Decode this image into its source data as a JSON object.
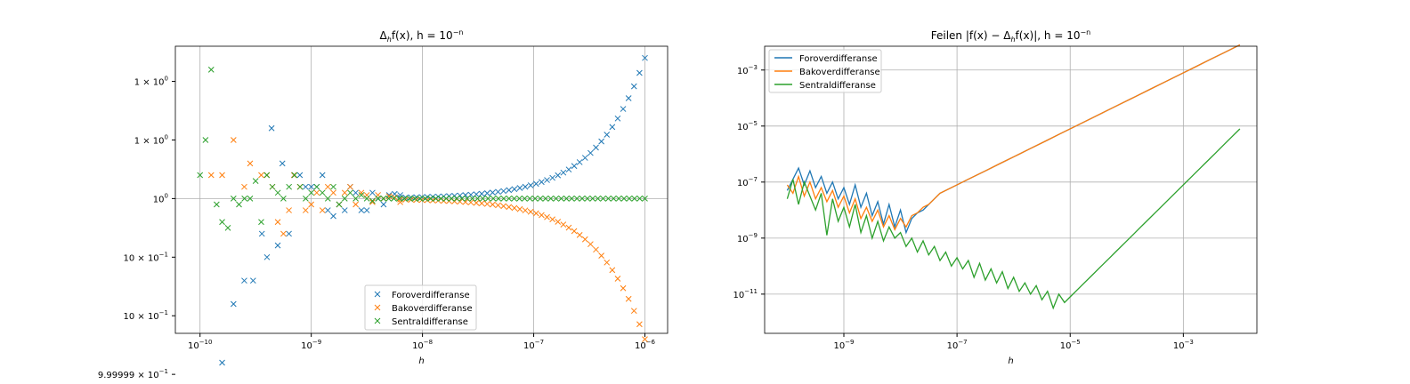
{
  "colors": {
    "forward": "#1f77b4",
    "backward": "#ff7f0e",
    "central": "#2ca02c"
  },
  "chart_data": [
    {
      "type": "scatter",
      "title": {
        "main": "Δ",
        "sub": "h",
        "rest": "f(x), h = 10",
        "sup": "−n"
      },
      "xlabel": "h",
      "xscale": "log",
      "xlim": [
        6e-11,
        1.6e-06
      ],
      "ylim": [
        0.99999885,
        1.0000013
      ],
      "xticks": [
        {
          "v": 1e-10,
          "label": "10",
          "exp": "−10"
        },
        {
          "v": 1e-09,
          "label": "10",
          "exp": "−9"
        },
        {
          "v": 1e-08,
          "label": "10",
          "exp": "−8"
        },
        {
          "v": 1e-07,
          "label": "10",
          "exp": "−7"
        },
        {
          "v": 1e-06,
          "label": "10",
          "exp": "−6"
        }
      ],
      "yticks": [
        {
          "v": 1.000001,
          "label": "1 × 10",
          "exp": "0"
        },
        {
          "v": 1.0000005,
          "label": "1 × 10",
          "exp": "0"
        },
        {
          "v": 1.0,
          "label": "10",
          "exp": "0"
        },
        {
          "v": 0.9999995,
          "label": "10 × 10",
          "exp": "−1"
        },
        {
          "v": 0.999999,
          "label": "10 × 10",
          "exp": "−1"
        },
        {
          "v": 0.9999985,
          "label": "9.99999 × 10",
          "exp": "−1"
        }
      ],
      "legend": {
        "position": "lower center",
        "entries": [
          "Foroverdifferanse",
          "Bakoverdifferanse",
          "Sentraldifferanse"
        ]
      },
      "series": [
        {
          "name": "Foroverdifferanse",
          "key": "forward",
          "marker": "x",
          "points": [
            [
              1.58e-10,
              0.9999986
            ],
            [
              2e-10,
              0.9999991
            ],
            [
              2.5e-10,
              0.9999993
            ],
            [
              3e-10,
              0.9999993
            ],
            [
              3.6e-10,
              0.9999997
            ],
            [
              4e-10,
              0.9999995
            ],
            [
              4.4e-10,
              1.0000006
            ],
            [
              5e-10,
              0.9999996
            ],
            [
              5.5e-10,
              1.0000003
            ],
            [
              6.3e-10,
              0.9999997
            ],
            [
              7e-10,
              1.0000002
            ],
            [
              7.9e-10,
              1.0000002
            ],
            [
              8.9e-10,
              1.0000001
            ],
            [
              1e-09,
              1.0000001
            ],
            [
              1.12e-09,
              1.0000001
            ],
            [
              1.26e-09,
              1.0000002
            ],
            [
              1.41e-09,
              0.9999999
            ],
            [
              1.58e-09,
              0.99999985
            ],
            [
              1.78e-09,
              0.99999995
            ],
            [
              2e-09,
              0.9999999
            ],
            [
              2.24e-09,
              1.0000001
            ],
            [
              2.51e-09,
              1.00000005
            ],
            [
              2.82e-09,
              0.9999999
            ],
            [
              3.16e-09,
              0.9999999
            ],
            [
              3.55e-09,
              1.00000005
            ],
            [
              3.98e-09,
              1.0
            ],
            [
              4.47e-09,
              0.99999995
            ],
            [
              5.01e-09,
              1.00000003
            ],
            [
              5.62e-09,
              1.00000004
            ],
            [
              6.31e-09,
              1.00000003
            ]
          ],
          "growth": {
            "from": 6.3e-09,
            "to": 1e-06,
            "n": 46,
            "a": 1.2e-06,
            "p": 1.0
          }
        },
        {
          "name": "Bakoverdifferanse",
          "key": "backward",
          "marker": "x",
          "points": [
            [
              1.26e-10,
              1.0000002
            ],
            [
              1.58e-10,
              1.0000002
            ],
            [
              2e-10,
              1.0000005
            ],
            [
              2.5e-10,
              1.0000001
            ],
            [
              2.82e-10,
              1.0000003
            ],
            [
              3.55e-10,
              1.0000002
            ],
            [
              4e-10,
              1.0000002
            ],
            [
              4.47e-10,
              1.0000001
            ],
            [
              5e-10,
              0.9999998
            ],
            [
              5.62e-10,
              0.9999997
            ],
            [
              6.3e-10,
              0.9999999
            ],
            [
              7e-10,
              1.0000002
            ],
            [
              7.9e-10,
              1.0000001
            ],
            [
              8.9e-10,
              0.9999999
            ],
            [
              1e-09,
              0.99999995
            ],
            [
              1.12e-09,
              1.00000005
            ],
            [
              1.26e-09,
              0.9999999
            ],
            [
              1.41e-09,
              1.0000001
            ],
            [
              1.58e-09,
              1.00000005
            ],
            [
              1.78e-09,
              0.99999995
            ],
            [
              2e-09,
              1.00000005
            ],
            [
              2.24e-09,
              1.0000001
            ],
            [
              2.51e-09,
              0.99999995
            ],
            [
              2.82e-09,
              1.00000005
            ],
            [
              3.16e-09,
              1.00000003
            ],
            [
              3.55e-09,
              0.99999997
            ],
            [
              3.98e-09,
              1.00000003
            ],
            [
              4.47e-09,
              1.0
            ],
            [
              5.01e-09,
              1.00000002
            ],
            [
              5.62e-09,
              1.00000001
            ],
            [
              6.31e-09,
              0.99999997
            ]
          ],
          "growth": {
            "from": 6.3e-09,
            "to": 1e-06,
            "n": 46,
            "a": -1.2e-06,
            "p": 1.0
          }
        },
        {
          "name": "Sentraldifferanse",
          "key": "central",
          "marker": "x",
          "points": [
            [
              1e-10,
              1.0000002
            ],
            [
              1.12e-10,
              1.0000005
            ],
            [
              1.26e-10,
              1.0000011
            ],
            [
              1.41e-10,
              0.99999995
            ],
            [
              1.58e-10,
              0.9999998
            ],
            [
              1.78e-10,
              0.99999975
            ],
            [
              2e-10,
              1.0
            ],
            [
              2.24e-10,
              0.99999995
            ],
            [
              2.51e-10,
              1.0
            ],
            [
              2.82e-10,
              1.0
            ],
            [
              3.16e-10,
              1.00000015
            ],
            [
              3.55e-10,
              0.9999998
            ],
            [
              3.98e-10,
              1.0000002
            ],
            [
              4.47e-10,
              1.0000001
            ],
            [
              5.01e-10,
              1.00000005
            ],
            [
              5.62e-10,
              1.0
            ],
            [
              6.31e-10,
              1.0000001
            ],
            [
              7.08e-10,
              1.0000002
            ],
            [
              7.94e-10,
              1.0000001
            ],
            [
              8.91e-10,
              1.0
            ],
            [
              1e-09,
              1.00000005
            ],
            [
              1.12e-09,
              1.0000001
            ],
            [
              1.26e-09,
              1.00000005
            ],
            [
              1.41e-09,
              1.0
            ],
            [
              1.58e-09,
              1.0000001
            ],
            [
              1.78e-09,
              0.99999995
            ],
            [
              2e-09,
              1.0
            ],
            [
              2.24e-09,
              1.00000005
            ],
            [
              2.51e-09,
              1.0
            ],
            [
              2.82e-09,
              1.00000003
            ],
            [
              3.16e-09,
              1.0
            ],
            [
              3.55e-09,
              0.99999998
            ]
          ],
          "growth": {
            "from": 4e-09,
            "to": 1e-06,
            "n": 52,
            "a": 0.0,
            "p": 1.0
          }
        }
      ]
    },
    {
      "type": "line",
      "title": {
        "main": "Feilen |f(x) − Δ",
        "sub": "h",
        "rest": "f(x)|, h = 10",
        "sup": "−n"
      },
      "xlabel": "h",
      "xscale": "log",
      "yscale": "log",
      "xlim_log10": [
        -10.4,
        -1.7
      ],
      "ylim_log10": [
        -12.4,
        -2.15
      ],
      "xticks": [
        {
          "v": -9,
          "label": "10",
          "exp": "−9"
        },
        {
          "v": -7,
          "label": "10",
          "exp": "−7"
        },
        {
          "v": -5,
          "label": "10",
          "exp": "−5"
        },
        {
          "v": -3,
          "label": "10",
          "exp": "−3"
        }
      ],
      "yticks": [
        {
          "v": -3,
          "label": "10",
          "exp": "−3"
        },
        {
          "v": -5,
          "label": "10",
          "exp": "−5"
        },
        {
          "v": -7,
          "label": "10",
          "exp": "−7"
        },
        {
          "v": -9,
          "label": "10",
          "exp": "−9"
        },
        {
          "v": -11,
          "label": "10",
          "exp": "−11"
        }
      ],
      "legend": {
        "position": "upper left",
        "entries": [
          "Foroverdifferanse",
          "Bakoverdifferanse",
          "Sentraldifferanse"
        ]
      },
      "series": [
        {
          "name": "Foroverdifferanse",
          "key": "forward",
          "noisy_log10": [
            [
              -10.0,
              -7.3
            ],
            [
              -9.9,
              -6.9
            ],
            [
              -9.8,
              -6.5
            ],
            [
              -9.7,
              -7.1
            ],
            [
              -9.6,
              -6.6
            ],
            [
              -9.5,
              -7.2
            ],
            [
              -9.4,
              -6.8
            ],
            [
              -9.3,
              -7.4
            ],
            [
              -9.2,
              -7.0
            ],
            [
              -9.1,
              -7.6
            ],
            [
              -9.0,
              -7.2
            ],
            [
              -8.9,
              -7.8
            ],
            [
              -8.8,
              -7.1
            ],
            [
              -8.7,
              -7.9
            ],
            [
              -8.6,
              -7.4
            ],
            [
              -8.5,
              -8.2
            ],
            [
              -8.4,
              -7.7
            ],
            [
              -8.3,
              -8.5
            ],
            [
              -8.2,
              -7.8
            ],
            [
              -8.1,
              -8.6
            ],
            [
              -8.0,
              -8.0
            ],
            [
              -7.9,
              -8.8
            ],
            [
              -7.8,
              -8.3
            ],
            [
              -7.7,
              -8.1
            ],
            [
              -7.6,
              -8.0
            ],
            [
              -7.5,
              -7.8
            ],
            [
              -7.4,
              -7.6
            ],
            [
              -7.3,
              -7.4
            ]
          ],
          "linear_log10": {
            "from": -7.3,
            "to": -2.0,
            "y0": -7.4,
            "slope": 1.0
          }
        },
        {
          "name": "Bakoverdifferanse",
          "key": "backward",
          "noisy_log10": [
            [
              -10.0,
              -7.1
            ],
            [
              -9.9,
              -7.4
            ],
            [
              -9.8,
              -6.8
            ],
            [
              -9.7,
              -7.5
            ],
            [
              -9.6,
              -7.0
            ],
            [
              -9.5,
              -7.6
            ],
            [
              -9.4,
              -7.2
            ],
            [
              -9.3,
              -7.7
            ],
            [
              -9.2,
              -7.3
            ],
            [
              -9.1,
              -7.9
            ],
            [
              -9.0,
              -7.5
            ],
            [
              -8.9,
              -8.1
            ],
            [
              -8.8,
              -7.6
            ],
            [
              -8.7,
              -8.3
            ],
            [
              -8.6,
              -7.9
            ],
            [
              -8.5,
              -8.4
            ],
            [
              -8.4,
              -8.0
            ],
            [
              -8.3,
              -8.6
            ],
            [
              -8.2,
              -8.2
            ],
            [
              -8.1,
              -8.7
            ],
            [
              -8.0,
              -8.3
            ],
            [
              -7.9,
              -8.6
            ],
            [
              -7.8,
              -8.2
            ],
            [
              -7.7,
              -8.1
            ],
            [
              -7.6,
              -7.9
            ],
            [
              -7.5,
              -7.8
            ],
            [
              -7.4,
              -7.6
            ],
            [
              -7.3,
              -7.4
            ]
          ],
          "linear_log10": {
            "from": -7.3,
            "to": -2.0,
            "y0": -7.4,
            "slope": 1.0
          }
        },
        {
          "name": "Sentraldifferanse",
          "key": "central",
          "noisy_log10": [
            [
              -10.0,
              -7.6
            ],
            [
              -9.9,
              -6.9
            ],
            [
              -9.8,
              -7.8
            ],
            [
              -9.7,
              -7.0
            ],
            [
              -9.6,
              -7.5
            ],
            [
              -9.5,
              -8.0
            ],
            [
              -9.4,
              -7.4
            ],
            [
              -9.3,
              -8.9
            ],
            [
              -9.2,
              -7.6
            ],
            [
              -9.1,
              -8.4
            ],
            [
              -9.0,
              -7.9
            ],
            [
              -8.9,
              -8.6
            ],
            [
              -8.8,
              -7.8
            ],
            [
              -8.7,
              -8.8
            ],
            [
              -8.6,
              -8.2
            ],
            [
              -8.5,
              -9.0
            ],
            [
              -8.4,
              -8.4
            ],
            [
              -8.3,
              -9.1
            ],
            [
              -8.2,
              -8.6
            ],
            [
              -8.1,
              -9.0
            ],
            [
              -8.0,
              -8.8
            ],
            [
              -7.9,
              -9.3
            ],
            [
              -7.8,
              -9.0
            ],
            [
              -7.7,
              -9.5
            ],
            [
              -7.6,
              -9.1
            ],
            [
              -7.5,
              -9.6
            ],
            [
              -7.4,
              -9.3
            ],
            [
              -7.3,
              -9.8
            ],
            [
              -7.2,
              -9.5
            ],
            [
              -7.1,
              -10.0
            ],
            [
              -7.0,
              -9.7
            ],
            [
              -6.9,
              -10.1
            ],
            [
              -6.8,
              -9.8
            ],
            [
              -6.7,
              -10.4
            ],
            [
              -6.6,
              -9.9
            ],
            [
              -6.5,
              -10.5
            ],
            [
              -6.4,
              -10.1
            ],
            [
              -6.3,
              -10.6
            ],
            [
              -6.2,
              -10.2
            ],
            [
              -6.1,
              -10.8
            ],
            [
              -6.0,
              -10.4
            ],
            [
              -5.9,
              -10.9
            ],
            [
              -5.8,
              -10.6
            ],
            [
              -5.7,
              -11.0
            ],
            [
              -5.6,
              -10.7
            ],
            [
              -5.5,
              -11.2
            ],
            [
              -5.4,
              -10.9
            ],
            [
              -5.3,
              -11.5
            ],
            [
              -5.2,
              -11.0
            ],
            [
              -5.1,
              -11.3
            ],
            [
              -5.0,
              -11.1
            ],
            [
              -4.9,
              -10.9
            ]
          ],
          "linear_log10": {
            "from": -4.9,
            "to": -2.0,
            "y0": -10.9,
            "slope": 2.0
          }
        }
      ]
    }
  ]
}
